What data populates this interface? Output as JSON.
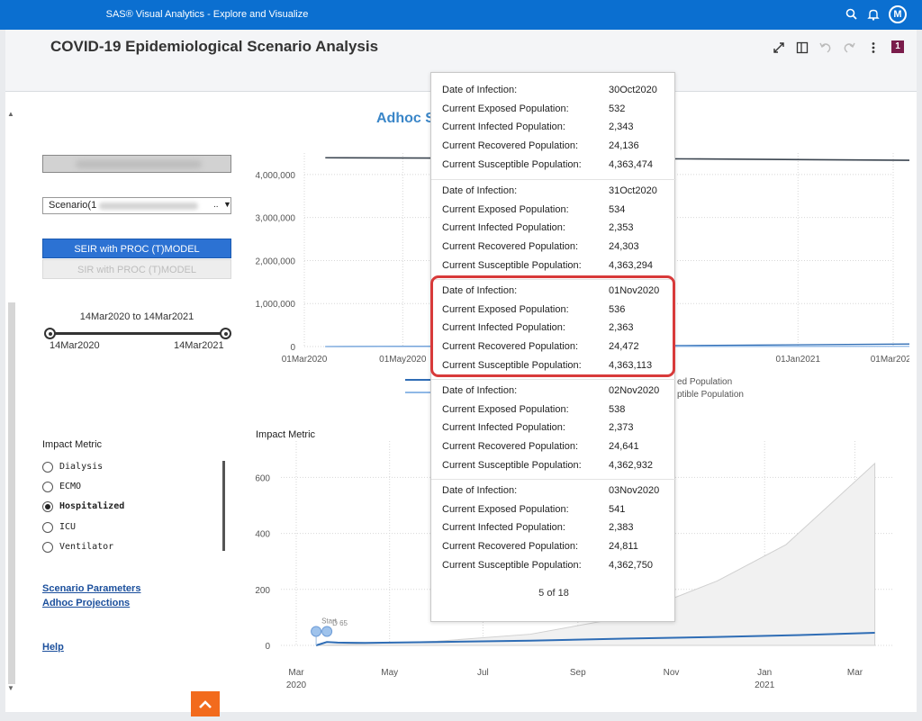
{
  "app": {
    "title": "SAS® Visual Analytics - Explore and Visualize",
    "avatar_initial": "M",
    "icons": [
      "search-icon",
      "bell-icon"
    ]
  },
  "header": {
    "title": "COVID-19 Epidemiological Scenario Analysis",
    "page_badge": "1",
    "icons": [
      "expand-icon",
      "split-pane-icon",
      "undo-icon",
      "redo-icon",
      "more-icon"
    ]
  },
  "sidebar": {
    "scenario_select": {
      "value": "Scenario(1",
      "ellipsis": ".."
    },
    "model_buttons": {
      "seir": "SEIR with PROC (T)MODEL",
      "sir": "SIR with PROC (T)MODEL"
    },
    "date_range": {
      "label": "14Mar2020 to 14Mar2021",
      "start": "14Mar2020",
      "end": "14Mar2021"
    },
    "impact_metric": {
      "heading": "Impact Metric",
      "options": [
        "Dialysis",
        "ECMO",
        "Hospitalized",
        "ICU",
        "Ventilator"
      ],
      "selected": "Hospitalized"
    },
    "links": [
      "Scenario Parameters",
      "Adhoc Projections",
      "Help"
    ]
  },
  "colors": {
    "accent": "#0b6fd0",
    "highlight": "#d83a3a",
    "line_dark": "#3b4550",
    "line_blue": "#2f6db5",
    "orange": "#f26b1d"
  },
  "main": {
    "chart_title": "Adhoc S"
  },
  "chart_data": [
    {
      "type": "line",
      "title": "",
      "x_ticks": [
        "01Mar2020",
        "01May2020",
        "01Jan2021",
        "01Mar2021"
      ],
      "y_ticks": [
        "0",
        "1,000,000",
        "2,000,000",
        "3,000,000",
        "4,000,000"
      ],
      "ylim": [
        0,
        4500000
      ],
      "grid": true,
      "legend_fragments": [
        "ed Population",
        "ptible Population"
      ],
      "series": [
        {
          "x": [
            "2020-03-14",
            "2020-11-01",
            "2021-03-14"
          ],
          "values": [
            4390000,
            4363113,
            4330000
          ]
        },
        {
          "x": [
            "2020-03-14",
            "2020-11-01",
            "2021-03-14"
          ],
          "values": [
            0,
            24472,
            60000
          ]
        },
        {
          "x": [
            "2020-03-14",
            "2020-11-01",
            "2021-03-14"
          ],
          "values": [
            0,
            2363,
            5000
          ]
        }
      ]
    },
    {
      "type": "area",
      "title": "Impact Metric",
      "x_ticks": [
        {
          "month": "Mar",
          "year": "2020"
        },
        {
          "month": "May",
          "year": ""
        },
        {
          "month": "Jul",
          "year": ""
        },
        {
          "month": "Sep",
          "year": ""
        },
        {
          "month": "Nov",
          "year": ""
        },
        {
          "month": "Jan",
          "year": "2021"
        },
        {
          "month": "Mar",
          "year": ""
        }
      ],
      "y_ticks": [
        "0",
        "200",
        "400",
        "600"
      ],
      "ylim": [
        0,
        730
      ],
      "grid": true,
      "annotations": [
        "Start",
        "D 65"
      ],
      "series": [
        {
          "x": [
            "2020-03-14",
            "2020-03-21",
            "2020-03-28",
            "2020-04-15",
            "2020-06-01",
            "2020-08-01",
            "2020-10-01",
            "2020-12-01",
            "2021-02-01",
            "2021-03-14"
          ],
          "values": [
            0,
            12,
            10,
            9,
            12,
            17,
            24,
            30,
            38,
            45
          ]
        },
        {
          "x": [
            "2020-03-14",
            "2020-06-01",
            "2020-08-01",
            "2020-10-01",
            "2020-12-01",
            "2021-01-15",
            "2021-03-14"
          ],
          "values": [
            0,
            15,
            40,
            100,
            230,
            360,
            650
          ]
        }
      ]
    }
  ],
  "tooltip": {
    "records": [
      {
        "date_label": "Date of Infection:",
        "date": "30Oct2020",
        "exposed_label": "Current Exposed Population:",
        "exposed": "532",
        "infected_label": "Current Infected Population:",
        "infected": "2,343",
        "recovered_label": "Current Recovered Population:",
        "recovered": "24,136",
        "susceptible_label": "Current Susceptible Population:",
        "susceptible": "4,363,474"
      },
      {
        "date_label": "Date of Infection:",
        "date": "31Oct2020",
        "exposed_label": "Current Exposed Population:",
        "exposed": "534",
        "infected_label": "Current Infected Population:",
        "infected": "2,353",
        "recovered_label": "Current Recovered Population:",
        "recovered": "24,303",
        "susceptible_label": "Current Susceptible Population:",
        "susceptible": "4,363,294"
      },
      {
        "date_label": "Date of Infection:",
        "date": "01Nov2020",
        "exposed_label": "Current Exposed Population:",
        "exposed": "536",
        "infected_label": "Current Infected Population:",
        "infected": "2,363",
        "recovered_label": "Current Recovered Population:",
        "recovered": "24,472",
        "susceptible_label": "Current Susceptible Population:",
        "susceptible": "4,363,113"
      },
      {
        "date_label": "Date of Infection:",
        "date": "02Nov2020",
        "exposed_label": "Current Exposed Population:",
        "exposed": "538",
        "infected_label": "Current Infected Population:",
        "infected": "2,373",
        "recovered_label": "Current Recovered Population:",
        "recovered": "24,641",
        "susceptible_label": "Current Susceptible Population:",
        "susceptible": "4,362,932"
      },
      {
        "date_label": "Date of Infection:",
        "date": "03Nov2020",
        "exposed_label": "Current Exposed Population:",
        "exposed": "541",
        "infected_label": "Current Infected Population:",
        "infected": "2,383",
        "recovered_label": "Current Recovered Population:",
        "recovered": "24,811",
        "susceptible_label": "Current Susceptible Population:",
        "susceptible": "4,362,750"
      }
    ],
    "highlighted_index": 2,
    "pager": "5 of 18"
  }
}
